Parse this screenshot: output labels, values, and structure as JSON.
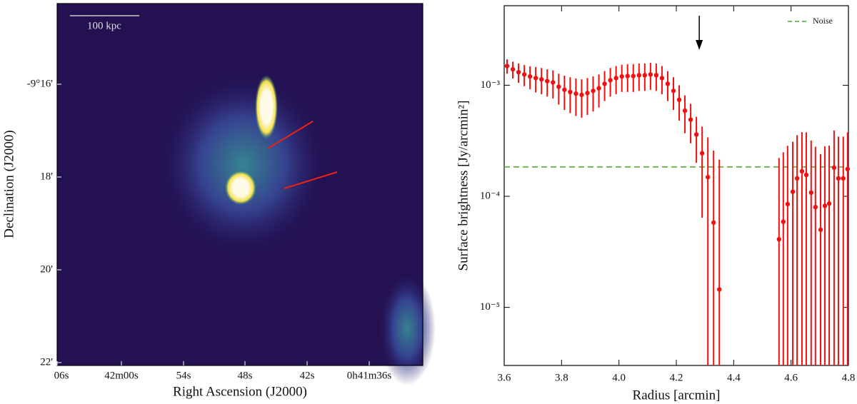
{
  "chart_data": [
    {
      "type": "image",
      "x_label": "Right Ascension (J2000)",
      "y_label": "Declination (J2000)",
      "xtick_labels": [
        "06s",
        "42m00s",
        "54s",
        "48s",
        "42s",
        "0h41m36s"
      ],
      "ytick_labels": [
        "-9°16'",
        "18'",
        "20'",
        "22'"
      ],
      "scale_bar_label": "100 kpc"
    },
    {
      "type": "errorbar",
      "x_label": "Radius [arcmin]",
      "y_label": "Surface brightness [Jy/arcmin²]",
      "log_y": true,
      "xlim": [
        3.6,
        4.8
      ],
      "xticks": [
        3.6,
        3.8,
        {
          "value": 4,
          "label": "4.0"
        },
        4.2,
        4.4,
        4.6,
        4.8
      ],
      "ylim": [
        3e-06,
        0.0052
      ],
      "yticks": [
        {
          "value": 0.001,
          "label": "10⁻³"
        },
        {
          "value": 0.0001,
          "label": "10⁻⁴"
        },
        {
          "value": 1e-05,
          "label": "10⁻⁵"
        }
      ],
      "color": "#ee1111",
      "x": [
        3.61,
        3.63,
        3.65,
        3.67,
        3.69,
        3.71,
        3.73,
        3.75,
        3.77,
        3.79,
        3.81,
        3.83,
        3.85,
        3.87,
        3.89,
        3.91,
        3.93,
        3.95,
        3.97,
        3.99,
        4.01,
        4.03,
        4.05,
        4.07,
        4.09,
        4.11,
        4.13,
        4.15,
        4.17,
        4.19,
        4.21,
        4.23,
        4.25,
        4.27,
        4.29,
        4.31,
        4.33,
        4.35,
        4.558,
        4.573,
        4.588,
        4.606,
        4.621,
        4.638,
        4.653,
        4.67,
        4.685,
        4.703,
        4.718,
        4.733,
        4.75,
        4.765,
        4.782,
        4.797
      ],
      "values": [
        0.00149,
        0.00139,
        0.00131,
        0.00125,
        0.0012,
        0.00116,
        0.00113,
        0.00109,
        0.00106,
        0.00097,
        0.00091,
        0.00087,
        0.00084,
        0.00082,
        0.00085,
        0.00089,
        0.00094,
        0.00103,
        0.00111,
        0.00116,
        0.0012,
        0.00121,
        0.00121,
        0.00123,
        0.00123,
        0.00125,
        0.00123,
        0.00116,
        0.00103,
        0.00089,
        0.00074,
        0.00059,
        0.00049,
        0.00036,
        0.000244,
        0.000149,
        5.8e-05,
        1.45e-05,
        4.1e-05,
        5.9e-05,
        8.5e-05,
        0.00011,
        0.000145,
        0.000168,
        0.000156,
        0.000108,
        8e-05,
        5e-05,
        8.2e-05,
        8.6e-05,
        0.000181,
        0.000145,
        0.000145,
        0.000176
      ],
      "errors": [
        0.00022,
        0.00024,
        0.00026,
        0.00027,
        0.00028,
        0.0003,
        0.0003,
        0.0003,
        0.0003,
        0.0003,
        0.00031,
        0.00031,
        0.00031,
        0.00031,
        0.00031,
        0.00031,
        0.00031,
        0.00031,
        0.00032,
        0.00033,
        0.00033,
        0.00034,
        0.00034,
        0.00034,
        0.00034,
        0.00034,
        0.00034,
        0.00033,
        0.00031,
        0.00029,
        0.00026,
        0.00022,
        0.00019,
        0.00016,
        0.00018,
        0.00019,
        0.0002,
        0.0002,
        0.00018,
        0.00019,
        0.0002,
        0.0002,
        0.00021,
        0.00021,
        0.00022,
        0.00021,
        0.0002,
        0.00019,
        0.0002,
        0.0002,
        0.00021,
        0.0002,
        0.0002,
        0.0002
      ],
      "hlines": [
        {
          "name": "Noise",
          "value": 0.000184,
          "color": "#6ab04c",
          "dashed": true
        }
      ],
      "arrow_x": 4.28,
      "legend": "upper right"
    }
  ]
}
